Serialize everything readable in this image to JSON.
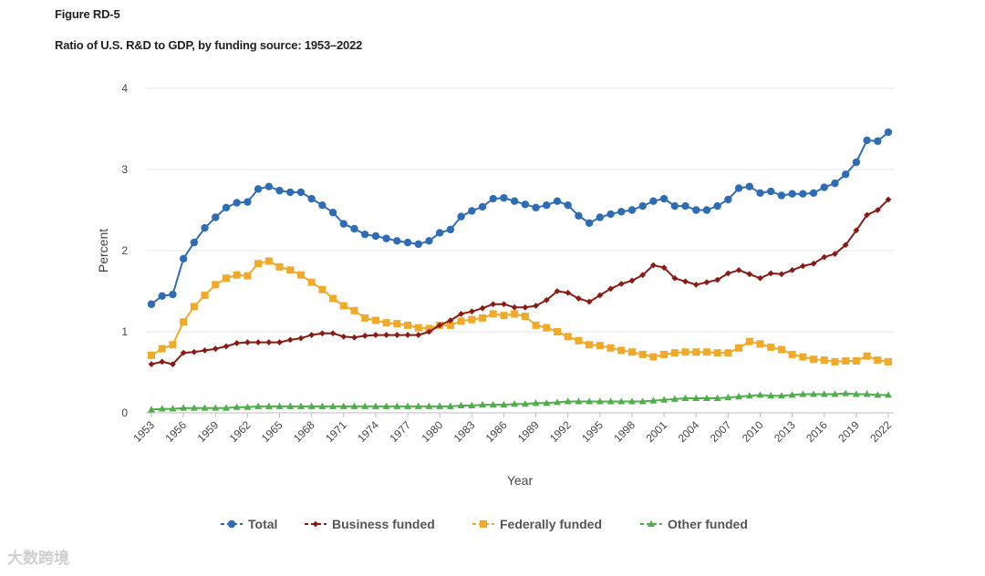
{
  "figure": {
    "label": "Figure RD-5",
    "title": "Ratio of U.S. R&D to GDP, by funding source: 1953–2022",
    "watermark": "大数跨境"
  },
  "chart_data": {
    "type": "line",
    "title": "Ratio of U.S. R&D to GDP, by funding source: 1953–2022",
    "xlabel": "Year",
    "ylabel": "Percent",
    "ylim": [
      0,
      4
    ],
    "yticks": [
      0,
      1,
      2,
      3,
      4
    ],
    "xticks": [
      1953,
      1956,
      1959,
      1962,
      1965,
      1968,
      1971,
      1974,
      1977,
      1980,
      1983,
      1986,
      1989,
      1992,
      1995,
      1998,
      2001,
      2004,
      2007,
      2010,
      2013,
      2016,
      2019,
      2022
    ],
    "grid": true,
    "legend_position": "bottom",
    "x": [
      1953,
      1954,
      1955,
      1956,
      1957,
      1958,
      1959,
      1960,
      1961,
      1962,
      1963,
      1964,
      1965,
      1966,
      1967,
      1968,
      1969,
      1970,
      1971,
      1972,
      1973,
      1974,
      1975,
      1976,
      1977,
      1978,
      1979,
      1980,
      1981,
      1982,
      1983,
      1984,
      1985,
      1986,
      1987,
      1988,
      1989,
      1990,
      1991,
      1992,
      1993,
      1994,
      1995,
      1996,
      1997,
      1998,
      1999,
      2000,
      2001,
      2002,
      2003,
      2004,
      2005,
      2006,
      2007,
      2008,
      2009,
      2010,
      2011,
      2012,
      2013,
      2014,
      2015,
      2016,
      2017,
      2018,
      2019,
      2020,
      2021,
      2022
    ],
    "series": [
      {
        "name": "Total",
        "color": "#2e6db5",
        "marker": "circle",
        "values": [
          1.34,
          1.44,
          1.46,
          1.9,
          2.1,
          2.28,
          2.41,
          2.53,
          2.59,
          2.6,
          2.76,
          2.79,
          2.74,
          2.72,
          2.72,
          2.64,
          2.56,
          2.47,
          2.33,
          2.27,
          2.2,
          2.18,
          2.15,
          2.12,
          2.1,
          2.08,
          2.12,
          2.22,
          2.26,
          2.42,
          2.49,
          2.54,
          2.64,
          2.65,
          2.61,
          2.57,
          2.53,
          2.56,
          2.61,
          2.56,
          2.43,
          2.34,
          2.41,
          2.45,
          2.48,
          2.5,
          2.55,
          2.61,
          2.64,
          2.55,
          2.55,
          2.5,
          2.5,
          2.55,
          2.63,
          2.77,
          2.79,
          2.71,
          2.73,
          2.68,
          2.7,
          2.7,
          2.71,
          2.78,
          2.83,
          2.94,
          3.09,
          3.36,
          3.35,
          3.46
        ]
      },
      {
        "name": "Business funded",
        "color": "#8b1a12",
        "marker": "diamond",
        "values": [
          0.6,
          0.63,
          0.6,
          0.74,
          0.75,
          0.77,
          0.79,
          0.82,
          0.86,
          0.87,
          0.87,
          0.87,
          0.87,
          0.9,
          0.92,
          0.96,
          0.98,
          0.98,
          0.94,
          0.93,
          0.95,
          0.96,
          0.96,
          0.96,
          0.96,
          0.96,
          1.0,
          1.08,
          1.14,
          1.22,
          1.25,
          1.29,
          1.34,
          1.34,
          1.3,
          1.3,
          1.32,
          1.39,
          1.5,
          1.48,
          1.41,
          1.37,
          1.45,
          1.53,
          1.59,
          1.63,
          1.7,
          1.82,
          1.79,
          1.66,
          1.62,
          1.58,
          1.61,
          1.64,
          1.72,
          1.76,
          1.71,
          1.66,
          1.72,
          1.71,
          1.76,
          1.81,
          1.84,
          1.92,
          1.96,
          2.07,
          2.25,
          2.44,
          2.5,
          2.63
        ]
      },
      {
        "name": "Federally funded",
        "color": "#f0a928",
        "marker": "square",
        "values": [
          0.71,
          0.79,
          0.84,
          1.12,
          1.31,
          1.45,
          1.58,
          1.66,
          1.7,
          1.69,
          1.84,
          1.87,
          1.8,
          1.76,
          1.7,
          1.61,
          1.52,
          1.41,
          1.32,
          1.26,
          1.17,
          1.14,
          1.11,
          1.1,
          1.08,
          1.05,
          1.04,
          1.08,
          1.08,
          1.13,
          1.15,
          1.17,
          1.22,
          1.2,
          1.22,
          1.19,
          1.08,
          1.05,
          1.0,
          0.94,
          0.89,
          0.84,
          0.83,
          0.8,
          0.77,
          0.75,
          0.72,
          0.69,
          0.72,
          0.74,
          0.75,
          0.75,
          0.75,
          0.74,
          0.74,
          0.8,
          0.88,
          0.85,
          0.81,
          0.78,
          0.72,
          0.69,
          0.66,
          0.65,
          0.63,
          0.64,
          0.64,
          0.7,
          0.65,
          0.63
        ]
      },
      {
        "name": "Other funded",
        "color": "#4fae4a",
        "marker": "triangle",
        "values": [
          0.04,
          0.05,
          0.05,
          0.06,
          0.06,
          0.06,
          0.06,
          0.06,
          0.07,
          0.07,
          0.08,
          0.08,
          0.08,
          0.08,
          0.08,
          0.08,
          0.08,
          0.08,
          0.08,
          0.08,
          0.08,
          0.08,
          0.08,
          0.08,
          0.08,
          0.08,
          0.08,
          0.08,
          0.08,
          0.09,
          0.09,
          0.1,
          0.1,
          0.1,
          0.11,
          0.11,
          0.12,
          0.12,
          0.13,
          0.14,
          0.14,
          0.14,
          0.14,
          0.14,
          0.14,
          0.14,
          0.14,
          0.15,
          0.16,
          0.17,
          0.18,
          0.18,
          0.18,
          0.18,
          0.19,
          0.2,
          0.21,
          0.22,
          0.21,
          0.21,
          0.22,
          0.23,
          0.23,
          0.23,
          0.23,
          0.24,
          0.23,
          0.23,
          0.22,
          0.22
        ]
      }
    ]
  }
}
